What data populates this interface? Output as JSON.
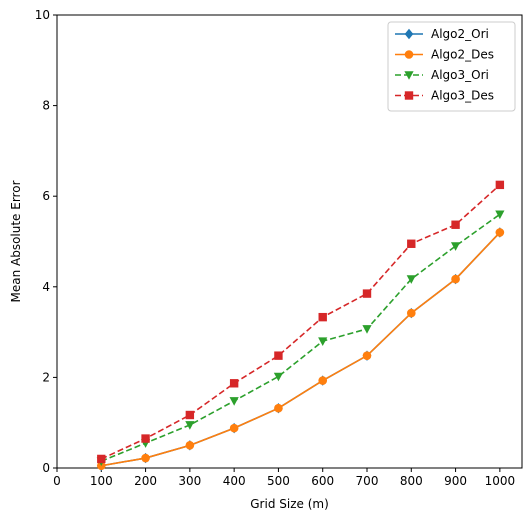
{
  "chart_data": {
    "type": "line",
    "title": "",
    "xlabel": "Grid Size (m)",
    "ylabel": "Mean Absolute Error",
    "xlim": [
      0,
      1050
    ],
    "ylim": [
      0,
      10
    ],
    "xticks": [
      0,
      100,
      200,
      300,
      400,
      500,
      600,
      700,
      800,
      900,
      1000
    ],
    "yticks": [
      0,
      2,
      4,
      6,
      8,
      10
    ],
    "grid": false,
    "legend_position": "top-right",
    "x": [
      100,
      200,
      300,
      400,
      500,
      600,
      700,
      800,
      900,
      1000
    ],
    "series": [
      {
        "name": "Algo2_Ori",
        "color": "#1f77b4",
        "linestyle": "solid",
        "marker": "diamond",
        "values": [
          0.05,
          0.22,
          0.5,
          0.88,
          1.32,
          1.93,
          2.48,
          3.42,
          4.17,
          5.2
        ]
      },
      {
        "name": "Algo2_Des",
        "color": "#ff7f0e",
        "linestyle": "solid",
        "marker": "circle",
        "values": [
          0.05,
          0.22,
          0.5,
          0.88,
          1.32,
          1.93,
          2.48,
          3.42,
          4.17,
          5.2
        ]
      },
      {
        "name": "Algo3_Ori",
        "color": "#2ca02c",
        "linestyle": "dashed",
        "marker": "triangle-down",
        "values": [
          0.15,
          0.55,
          0.95,
          1.48,
          2.02,
          2.8,
          3.07,
          4.17,
          4.9,
          5.6
        ]
      },
      {
        "name": "Algo3_Des",
        "color": "#d62728",
        "linestyle": "dashed",
        "marker": "square",
        "values": [
          0.2,
          0.65,
          1.17,
          1.87,
          2.48,
          3.33,
          3.85,
          4.95,
          5.37,
          6.25
        ]
      }
    ]
  }
}
